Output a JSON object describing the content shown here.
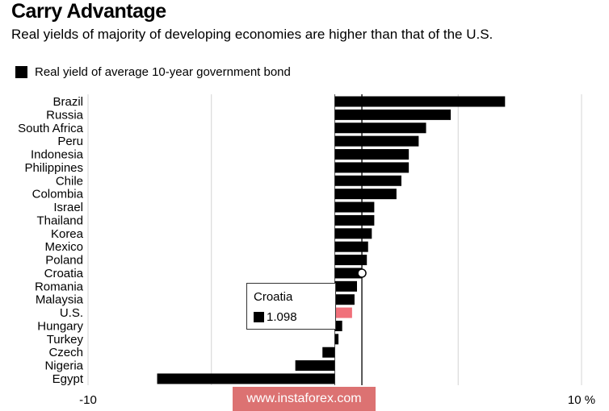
{
  "header": {
    "title": "Carry Advantage",
    "subtitle": "Real yields of majority of developing economies are higher than that of the U.S."
  },
  "legend": {
    "label": "Real yield of average 10-year government bond",
    "color": "#000000"
  },
  "tooltip": {
    "country": "Croatia",
    "value": "1.098"
  },
  "watermark": {
    "text": "www.instaforex.com"
  },
  "colors": {
    "bar": "#000000",
    "highlight": "#f0707a",
    "grid": "#d4d4d4"
  },
  "chart_data": {
    "type": "bar",
    "orientation": "horizontal",
    "title": "Carry Advantage",
    "subtitle": "Real yields of majority of developing economies are higher than that of the U.S.",
    "series": [
      {
        "name": "Real yield of average 10-year government bond",
        "categories": [
          "Brazil",
          "Russia",
          "South Africa",
          "Peru",
          "Indonesia",
          "Philippines",
          "Chile",
          "Colombia",
          "Israel",
          "Thailand",
          "Korea",
          "Mexico",
          "Poland",
          "Croatia",
          "Romania",
          "Malaysia",
          "U.S.",
          "Hungary",
          "Turkey",
          "Czech",
          "Nigeria",
          "Egypt"
        ],
        "values": [
          6.9,
          4.7,
          3.7,
          3.4,
          3.0,
          3.0,
          2.7,
          2.5,
          1.6,
          1.6,
          1.5,
          1.35,
          1.3,
          1.098,
          0.9,
          0.8,
          0.7,
          0.3,
          0.15,
          -0.5,
          -1.6,
          -7.2
        ]
      }
    ],
    "highlight_category": "U.S.",
    "marker_category": "Croatia",
    "xlim": [
      -10,
      10
    ],
    "x_ticks": [
      {
        "value": -10,
        "label": "-10"
      },
      {
        "value": 10,
        "label": "10 %"
      }
    ],
    "gridlines": [
      -10,
      -5,
      0,
      5,
      10
    ],
    "reference_line": 1.098,
    "xlabel": "",
    "ylabel": ""
  }
}
